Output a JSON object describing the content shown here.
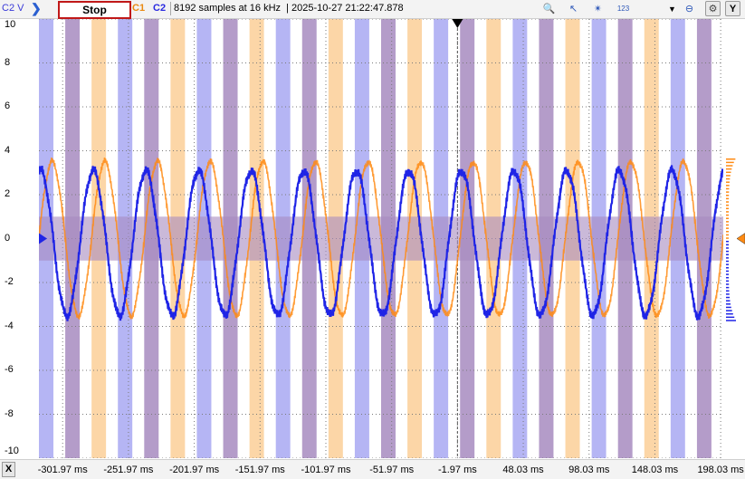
{
  "toolbar": {
    "y_unit": "C2 V",
    "stop_label": "Stop",
    "ch1_label": "C1",
    "ch2_label": "C2",
    "status": "8192 samples at 16 kHz",
    "timestamp": "2025-10-27 21:22:47.878",
    "icons": [
      "zoom-icon",
      "cursor-arrow-icon",
      "magic-wand-icon",
      "sequence-icon",
      "dropdown-icon",
      "zoom-out-icon",
      "settings-icon",
      "y-axis-icon"
    ],
    "y_button": "Y"
  },
  "xaxis": {
    "button": "X",
    "ticks": [
      "-301.97 ms",
      "-251.97 ms",
      "-201.97 ms",
      "-151.97 ms",
      "-101.97 ms",
      "-51.97 ms",
      "-1.97 ms",
      "48.03 ms",
      "98.03 ms",
      "148.03 ms",
      "198.03 ms"
    ]
  },
  "yaxis": {
    "ticks": [
      "10",
      "8",
      "6",
      "4",
      "2",
      "0",
      "-2",
      "-4",
      "-6",
      "-8",
      "-10"
    ]
  },
  "colors": {
    "c1": "#ff8a12",
    "c2": "#1f24e6",
    "c1_band": "#fccf98",
    "c2_band": "#a8a8f2",
    "overlap_band": "#a78bbf",
    "stop_border": "#c01818"
  },
  "chart_data": {
    "type": "line",
    "ylim": [
      -10,
      10
    ],
    "xlim": [
      -320,
      200
    ],
    "xunit": "ms",
    "grid": true,
    "series": [
      {
        "name": "C1",
        "shape": "sine",
        "amplitude": 3.5,
        "offset": 0.0,
        "period_ms": 40
      },
      {
        "name": "C2",
        "shape": "sine",
        "amplitude": 3.3,
        "offset": -0.2,
        "period_ms": 40
      }
    ]
  }
}
